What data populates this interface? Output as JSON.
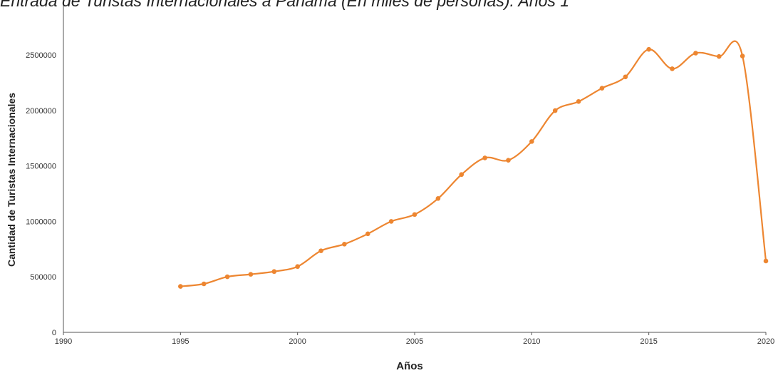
{
  "chart_data": {
    "type": "line",
    "title": "Entrada de Turistas Internacionales a Panamá (En miles de personas). Años 1",
    "xlabel": "Años",
    "ylabel": "Cantidad  de Turistas Internacionales",
    "xlim": [
      1990,
      2020
    ],
    "ylim": [
      0,
      2500000
    ],
    "x_ticks": [
      "1990",
      "1995",
      "2000",
      "2005",
      "2010",
      "2015",
      "2020"
    ],
    "y_ticks": [
      "0",
      "500000",
      "1000000",
      "1500000",
      "2000000",
      "2500000"
    ],
    "grid": false,
    "legend": "none",
    "line_color": "#ED8631",
    "series": [
      {
        "x": [
          1995,
          1996,
          1997,
          1998,
          1999,
          2000,
          2001,
          2002,
          2003,
          2004,
          2005,
          2006,
          2007,
          2008,
          2009,
          2010,
          2011,
          2012,
          2013,
          2014,
          2015,
          2016,
          2017,
          2018,
          2019,
          2020
        ],
        "values": [
          414000,
          437000,
          501000,
          523000,
          548000,
          593000,
          735000,
          795000,
          888000,
          1000000,
          1062000,
          1206000,
          1422000,
          1572000,
          1551000,
          1720000,
          1998000,
          2080000,
          2200000,
          2302000,
          2550000,
          2375000,
          2516000,
          2486000,
          2490000,
          643000
        ]
      }
    ]
  }
}
